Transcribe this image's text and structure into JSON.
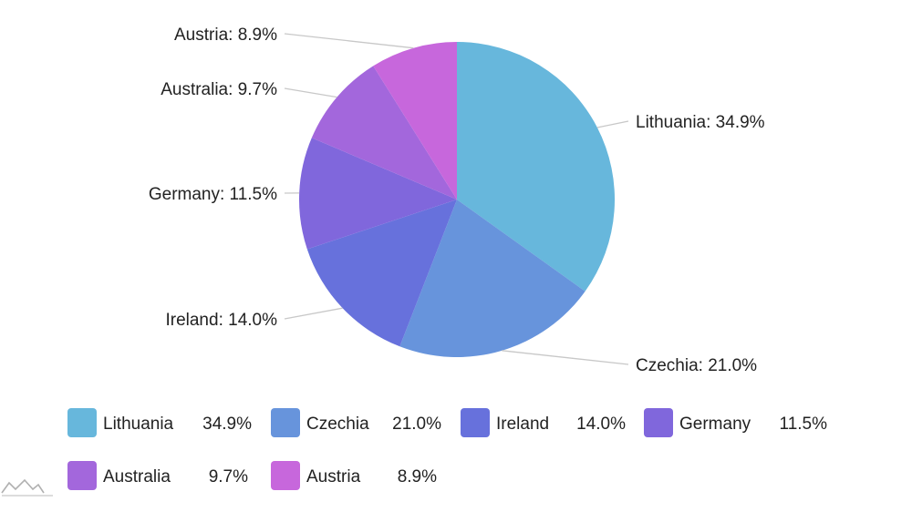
{
  "chart_data": {
    "type": "pie",
    "categories": [
      "Lithuania",
      "Czechia",
      "Ireland",
      "Germany",
      "Australia",
      "Austria"
    ],
    "values": [
      34.9,
      21.0,
      14.0,
      11.5,
      9.7,
      8.9
    ],
    "value_labels": [
      "34.9%",
      "21.0%",
      "14.0%",
      "11.5%",
      "9.7%",
      "8.9%"
    ],
    "slice_labels": [
      "Lithuania: 34.9%",
      "Czechia: 21.0%",
      "Ireland: 14.0%",
      "Germany: 11.5%",
      "Australia: 9.7%",
      "Austria: 8.9%"
    ],
    "colors": [
      "#67b7dc",
      "#6794dc",
      "#6771dc",
      "#8067dc",
      "#a367dc",
      "#c767dc"
    ],
    "start_angle": "top, clockwise",
    "legend_position": "bottom"
  },
  "watermark_icon": "amcharts-logo-icon"
}
